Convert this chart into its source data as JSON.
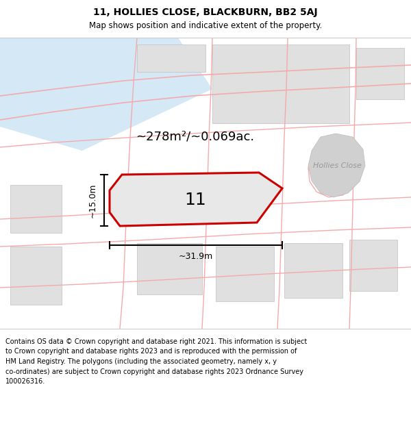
{
  "title_line1": "11, HOLLIES CLOSE, BLACKBURN, BB2 5AJ",
  "title_line2": "Map shows position and indicative extent of the property.",
  "area_text": "~278m²/~0.069ac.",
  "number_label": "11",
  "width_label": "~31.9m",
  "height_label": "~15.0m",
  "road_label": "Hollies Close",
  "footer_lines": [
    "Contains OS data © Crown copyright and database right 2021. This information is subject",
    "to Crown copyright and database rights 2023 and is reproduced with the permission of",
    "HM Land Registry. The polygons (including the associated geometry, namely x, y",
    "co-ordinates) are subject to Crown copyright and database rights 2023 Ordnance Survey",
    "100026316."
  ],
  "map_bg": "#ffffff",
  "prop_fill": "#e8e8e8",
  "prop_edge": "#cc0000",
  "pink": "#f5aaaa",
  "water": "#d5e8f5",
  "block": "#e0e0e0",
  "road_gray": "#d0d0d0",
  "title1_fs": 10,
  "title2_fs": 8.5,
  "area_fs": 13,
  "num_fs": 18,
  "dim_fs": 9,
  "road_fs": 8,
  "footer_fs": 7
}
